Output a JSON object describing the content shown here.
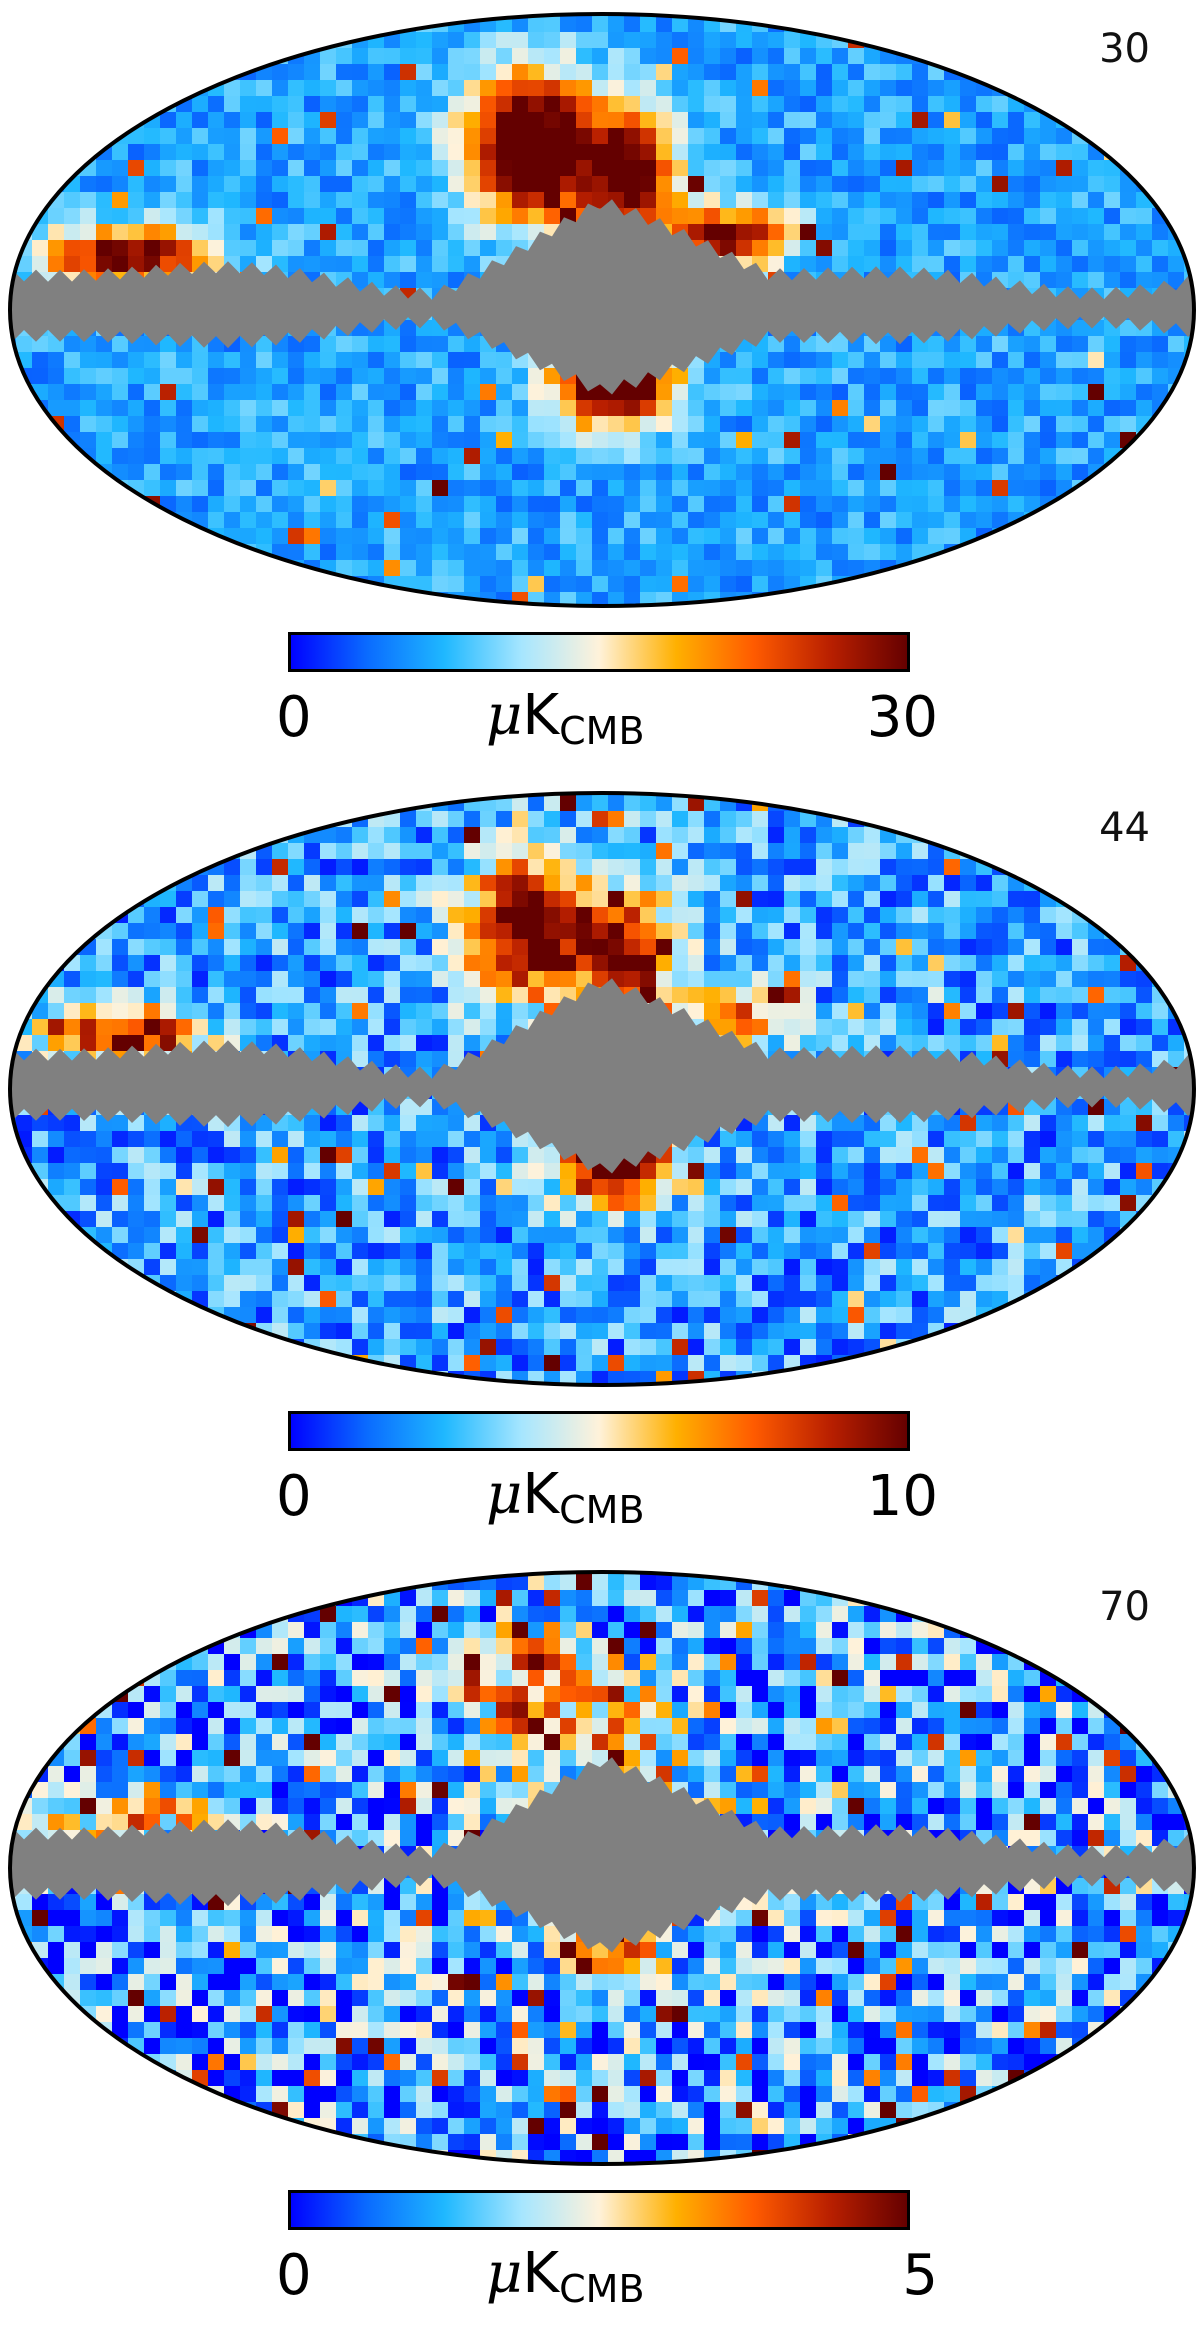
{
  "colormap": {
    "name": "planck-cmb",
    "stops": [
      "#0000ff",
      "#0a6bff",
      "#1fb8ff",
      "#a6e6ff",
      "#fff2da",
      "#ffb000",
      "#ff5b00",
      "#b81f00",
      "#640000"
    ]
  },
  "mask_color": "#808080",
  "outline_color": "#000000",
  "panels": [
    {
      "frequency_label": "30",
      "colorbar": {
        "min_label": "0",
        "max_label": "30",
        "unit_prefix": "μ",
        "unit_main": "K",
        "unit_sub": "CMB"
      }
    },
    {
      "frequency_label": "44",
      "colorbar": {
        "min_label": "0",
        "max_label": "10",
        "unit_prefix": "μ",
        "unit_main": "K",
        "unit_sub": "CMB"
      }
    },
    {
      "frequency_label": "70",
      "colorbar": {
        "min_label": "0",
        "max_label": "5",
        "unit_prefix": "μ",
        "unit_main": "K",
        "unit_sub": "CMB"
      }
    }
  ]
}
